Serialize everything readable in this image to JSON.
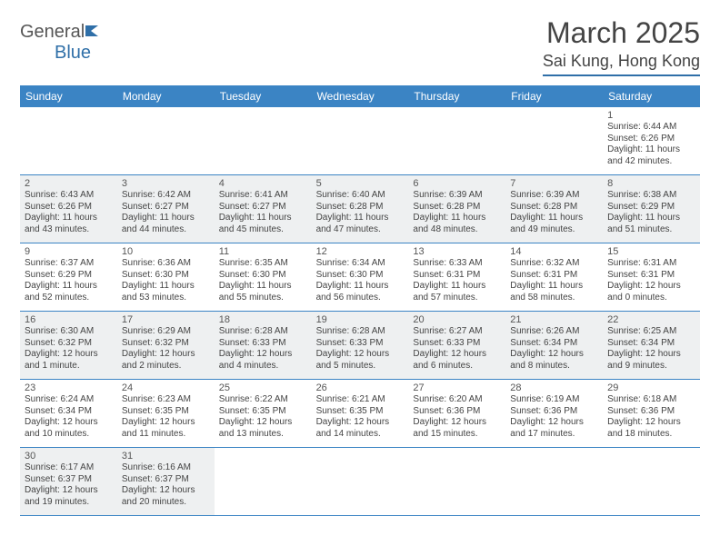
{
  "brand": {
    "part1": "General",
    "part2": "Blue"
  },
  "title": "March 2025",
  "location": "Sai Kung, Hong Kong",
  "colors": {
    "header_bar": "#3b84c4",
    "rule": "#2f6fa8",
    "shade": "#eef0f1",
    "text": "#444444"
  },
  "days_of_week": [
    "Sunday",
    "Monday",
    "Tuesday",
    "Wednesday",
    "Thursday",
    "Friday",
    "Saturday"
  ],
  "weeks": [
    [
      null,
      null,
      null,
      null,
      null,
      null,
      {
        "n": "1",
        "sr": "Sunrise: 6:44 AM",
        "ss": "Sunset: 6:26 PM",
        "d1": "Daylight: 11 hours",
        "d2": "and 42 minutes."
      }
    ],
    [
      {
        "n": "2",
        "sr": "Sunrise: 6:43 AM",
        "ss": "Sunset: 6:26 PM",
        "d1": "Daylight: 11 hours",
        "d2": "and 43 minutes."
      },
      {
        "n": "3",
        "sr": "Sunrise: 6:42 AM",
        "ss": "Sunset: 6:27 PM",
        "d1": "Daylight: 11 hours",
        "d2": "and 44 minutes."
      },
      {
        "n": "4",
        "sr": "Sunrise: 6:41 AM",
        "ss": "Sunset: 6:27 PM",
        "d1": "Daylight: 11 hours",
        "d2": "and 45 minutes."
      },
      {
        "n": "5",
        "sr": "Sunrise: 6:40 AM",
        "ss": "Sunset: 6:28 PM",
        "d1": "Daylight: 11 hours",
        "d2": "and 47 minutes."
      },
      {
        "n": "6",
        "sr": "Sunrise: 6:39 AM",
        "ss": "Sunset: 6:28 PM",
        "d1": "Daylight: 11 hours",
        "d2": "and 48 minutes."
      },
      {
        "n": "7",
        "sr": "Sunrise: 6:39 AM",
        "ss": "Sunset: 6:28 PM",
        "d1": "Daylight: 11 hours",
        "d2": "and 49 minutes."
      },
      {
        "n": "8",
        "sr": "Sunrise: 6:38 AM",
        "ss": "Sunset: 6:29 PM",
        "d1": "Daylight: 11 hours",
        "d2": "and 51 minutes."
      }
    ],
    [
      {
        "n": "9",
        "sr": "Sunrise: 6:37 AM",
        "ss": "Sunset: 6:29 PM",
        "d1": "Daylight: 11 hours",
        "d2": "and 52 minutes."
      },
      {
        "n": "10",
        "sr": "Sunrise: 6:36 AM",
        "ss": "Sunset: 6:30 PM",
        "d1": "Daylight: 11 hours",
        "d2": "and 53 minutes."
      },
      {
        "n": "11",
        "sr": "Sunrise: 6:35 AM",
        "ss": "Sunset: 6:30 PM",
        "d1": "Daylight: 11 hours",
        "d2": "and 55 minutes."
      },
      {
        "n": "12",
        "sr": "Sunrise: 6:34 AM",
        "ss": "Sunset: 6:30 PM",
        "d1": "Daylight: 11 hours",
        "d2": "and 56 minutes."
      },
      {
        "n": "13",
        "sr": "Sunrise: 6:33 AM",
        "ss": "Sunset: 6:31 PM",
        "d1": "Daylight: 11 hours",
        "d2": "and 57 minutes."
      },
      {
        "n": "14",
        "sr": "Sunrise: 6:32 AM",
        "ss": "Sunset: 6:31 PM",
        "d1": "Daylight: 11 hours",
        "d2": "and 58 minutes."
      },
      {
        "n": "15",
        "sr": "Sunrise: 6:31 AM",
        "ss": "Sunset: 6:31 PM",
        "d1": "Daylight: 12 hours",
        "d2": "and 0 minutes."
      }
    ],
    [
      {
        "n": "16",
        "sr": "Sunrise: 6:30 AM",
        "ss": "Sunset: 6:32 PM",
        "d1": "Daylight: 12 hours",
        "d2": "and 1 minute."
      },
      {
        "n": "17",
        "sr": "Sunrise: 6:29 AM",
        "ss": "Sunset: 6:32 PM",
        "d1": "Daylight: 12 hours",
        "d2": "and 2 minutes."
      },
      {
        "n": "18",
        "sr": "Sunrise: 6:28 AM",
        "ss": "Sunset: 6:33 PM",
        "d1": "Daylight: 12 hours",
        "d2": "and 4 minutes."
      },
      {
        "n": "19",
        "sr": "Sunrise: 6:28 AM",
        "ss": "Sunset: 6:33 PM",
        "d1": "Daylight: 12 hours",
        "d2": "and 5 minutes."
      },
      {
        "n": "20",
        "sr": "Sunrise: 6:27 AM",
        "ss": "Sunset: 6:33 PM",
        "d1": "Daylight: 12 hours",
        "d2": "and 6 minutes."
      },
      {
        "n": "21",
        "sr": "Sunrise: 6:26 AM",
        "ss": "Sunset: 6:34 PM",
        "d1": "Daylight: 12 hours",
        "d2": "and 8 minutes."
      },
      {
        "n": "22",
        "sr": "Sunrise: 6:25 AM",
        "ss": "Sunset: 6:34 PM",
        "d1": "Daylight: 12 hours",
        "d2": "and 9 minutes."
      }
    ],
    [
      {
        "n": "23",
        "sr": "Sunrise: 6:24 AM",
        "ss": "Sunset: 6:34 PM",
        "d1": "Daylight: 12 hours",
        "d2": "and 10 minutes."
      },
      {
        "n": "24",
        "sr": "Sunrise: 6:23 AM",
        "ss": "Sunset: 6:35 PM",
        "d1": "Daylight: 12 hours",
        "d2": "and 11 minutes."
      },
      {
        "n": "25",
        "sr": "Sunrise: 6:22 AM",
        "ss": "Sunset: 6:35 PM",
        "d1": "Daylight: 12 hours",
        "d2": "and 13 minutes."
      },
      {
        "n": "26",
        "sr": "Sunrise: 6:21 AM",
        "ss": "Sunset: 6:35 PM",
        "d1": "Daylight: 12 hours",
        "d2": "and 14 minutes."
      },
      {
        "n": "27",
        "sr": "Sunrise: 6:20 AM",
        "ss": "Sunset: 6:36 PM",
        "d1": "Daylight: 12 hours",
        "d2": "and 15 minutes."
      },
      {
        "n": "28",
        "sr": "Sunrise: 6:19 AM",
        "ss": "Sunset: 6:36 PM",
        "d1": "Daylight: 12 hours",
        "d2": "and 17 minutes."
      },
      {
        "n": "29",
        "sr": "Sunrise: 6:18 AM",
        "ss": "Sunset: 6:36 PM",
        "d1": "Daylight: 12 hours",
        "d2": "and 18 minutes."
      }
    ],
    [
      {
        "n": "30",
        "sr": "Sunrise: 6:17 AM",
        "ss": "Sunset: 6:37 PM",
        "d1": "Daylight: 12 hours",
        "d2": "and 19 minutes."
      },
      {
        "n": "31",
        "sr": "Sunrise: 6:16 AM",
        "ss": "Sunset: 6:37 PM",
        "d1": "Daylight: 12 hours",
        "d2": "and 20 minutes."
      },
      null,
      null,
      null,
      null,
      null
    ]
  ]
}
